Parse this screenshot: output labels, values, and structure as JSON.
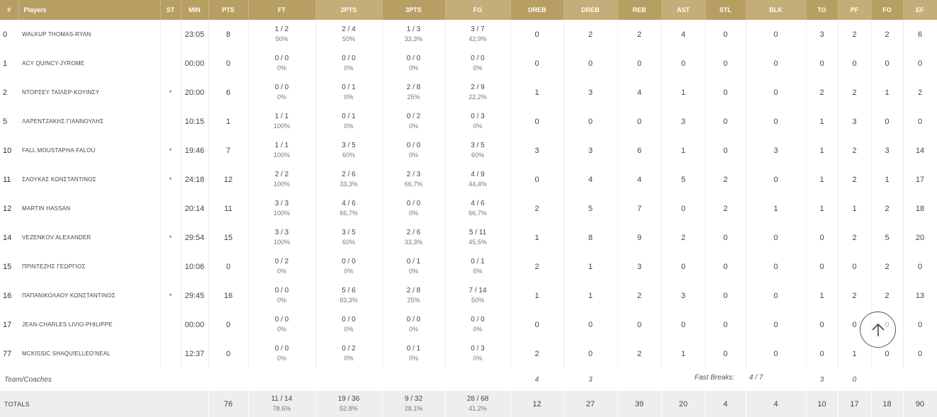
{
  "columns": {
    "num": "#",
    "players": "Players",
    "st": "ST",
    "min": "MIN",
    "pts": "PTS",
    "ft": "FT",
    "two_pts": "2PTS",
    "three_pts": "3PTS",
    "fg": "FG",
    "oreb": "OREB",
    "dreb": "DREB",
    "reb": "REB",
    "ast": "AST",
    "stl": "STL",
    "blk": "BLK",
    "to": "TO",
    "pf": "PF",
    "fo": "FO",
    "ef": "EF"
  },
  "players": [
    {
      "num": "0",
      "name": "WALKUP THOMAS-RYAN",
      "st": "",
      "min": "23:05",
      "pts": "8",
      "ft": "1 / 2",
      "ft_pct": "50%",
      "p2": "2 / 4",
      "p2_pct": "50%",
      "p3": "1 / 3",
      "p3_pct": "33,3%",
      "fg": "3 / 7",
      "fg_pct": "42,9%",
      "oreb": "0",
      "dreb": "2",
      "reb": "2",
      "ast": "4",
      "stl": "0",
      "blk": "0",
      "to": "3",
      "pf": "2",
      "fo": "2",
      "ef": "6"
    },
    {
      "num": "1",
      "name": "ACY QUINCY-JYROME",
      "st": "",
      "min": "00:00",
      "pts": "0",
      "ft": "0 / 0",
      "ft_pct": "0%",
      "p2": "0 / 0",
      "p2_pct": "0%",
      "p3": "0 / 0",
      "p3_pct": "0%",
      "fg": "0 / 0",
      "fg_pct": "0%",
      "oreb": "0",
      "dreb": "0",
      "reb": "0",
      "ast": "0",
      "stl": "0",
      "blk": "0",
      "to": "0",
      "pf": "0",
      "fo": "0",
      "ef": "0"
    },
    {
      "num": "2",
      "name": "ΝΤΟΡΣΕΥ ΤΑΪΛΕΡ-ΚΟΥΙΝΣΥ",
      "st": "*",
      "min": "20:00",
      "pts": "6",
      "ft": "0 / 0",
      "ft_pct": "0%",
      "p2": "0 / 1",
      "p2_pct": "0%",
      "p3": "2 / 8",
      "p3_pct": "25%",
      "fg": "2 / 9",
      "fg_pct": "22,2%",
      "oreb": "1",
      "dreb": "3",
      "reb": "4",
      "ast": "1",
      "stl": "0",
      "blk": "0",
      "to": "2",
      "pf": "2",
      "fo": "1",
      "ef": "2"
    },
    {
      "num": "5",
      "name": "ΛΑΡΕΝΤΖΑΚΗΣ ΓΙΑΝΝΟΥΛΗΣ",
      "st": "",
      "min": "10:15",
      "pts": "1",
      "ft": "1 / 1",
      "ft_pct": "100%",
      "p2": "0 / 1",
      "p2_pct": "0%",
      "p3": "0 / 2",
      "p3_pct": "0%",
      "fg": "0 / 3",
      "fg_pct": "0%",
      "oreb": "0",
      "dreb": "0",
      "reb": "0",
      "ast": "3",
      "stl": "0",
      "blk": "0",
      "to": "1",
      "pf": "3",
      "fo": "0",
      "ef": "0"
    },
    {
      "num": "10",
      "name": "FALL MOUSTAPHA-FALOU",
      "st": "*",
      "min": "19:46",
      "pts": "7",
      "ft": "1 / 1",
      "ft_pct": "100%",
      "p2": "3 / 5",
      "p2_pct": "60%",
      "p3": "0 / 0",
      "p3_pct": "0%",
      "fg": "3 / 5",
      "fg_pct": "60%",
      "oreb": "3",
      "dreb": "3",
      "reb": "6",
      "ast": "1",
      "stl": "0",
      "blk": "3",
      "to": "1",
      "pf": "2",
      "fo": "3",
      "ef": "14"
    },
    {
      "num": "11",
      "name": "ΣΛΟΥΚΑΣ ΚΩΝΣΤΑΝΤΙΝΟΣ",
      "st": "*",
      "min": "24:18",
      "pts": "12",
      "ft": "2 / 2",
      "ft_pct": "100%",
      "p2": "2 / 6",
      "p2_pct": "33,3%",
      "p3": "2 / 3",
      "p3_pct": "66,7%",
      "fg": "4 / 9",
      "fg_pct": "44,4%",
      "oreb": "0",
      "dreb": "4",
      "reb": "4",
      "ast": "5",
      "stl": "2",
      "blk": "0",
      "to": "1",
      "pf": "2",
      "fo": "1",
      "ef": "17"
    },
    {
      "num": "12",
      "name": "MARTIN HASSAN",
      "st": "",
      "min": "20:14",
      "pts": "11",
      "ft": "3 / 3",
      "ft_pct": "100%",
      "p2": "4 / 6",
      "p2_pct": "66,7%",
      "p3": "0 / 0",
      "p3_pct": "0%",
      "fg": "4 / 6",
      "fg_pct": "66,7%",
      "oreb": "2",
      "dreb": "5",
      "reb": "7",
      "ast": "0",
      "stl": "2",
      "blk": "1",
      "to": "1",
      "pf": "1",
      "fo": "2",
      "ef": "18"
    },
    {
      "num": "14",
      "name": "VEZENKOV ALEXANDER",
      "st": "*",
      "min": "29:54",
      "pts": "15",
      "ft": "3 / 3",
      "ft_pct": "100%",
      "p2": "3 / 5",
      "p2_pct": "60%",
      "p3": "2 / 6",
      "p3_pct": "33,3%",
      "fg": "5 / 11",
      "fg_pct": "45,5%",
      "oreb": "1",
      "dreb": "8",
      "reb": "9",
      "ast": "2",
      "stl": "0",
      "blk": "0",
      "to": "0",
      "pf": "2",
      "fo": "5",
      "ef": "20"
    },
    {
      "num": "15",
      "name": "ΠΡΙΝΤΕΖΗΣ ΓΕΩΡΓΙΟΣ",
      "st": "",
      "min": "10:06",
      "pts": "0",
      "ft": "0 / 2",
      "ft_pct": "0%",
      "p2": "0 / 0",
      "p2_pct": "0%",
      "p3": "0 / 1",
      "p3_pct": "0%",
      "fg": "0 / 1",
      "fg_pct": "0%",
      "oreb": "2",
      "dreb": "1",
      "reb": "3",
      "ast": "0",
      "stl": "0",
      "blk": "0",
      "to": "0",
      "pf": "0",
      "fo": "2",
      "ef": "0"
    },
    {
      "num": "16",
      "name": "ΠΑΠΑΝΙΚΟΛΑΟΥ ΚΩΝΣΤΑΝΤΙΝΟΣ",
      "st": "*",
      "min": "29:45",
      "pts": "16",
      "ft": "0 / 0",
      "ft_pct": "0%",
      "p2": "5 / 6",
      "p2_pct": "83,3%",
      "p3": "2 / 8",
      "p3_pct": "25%",
      "fg": "7 / 14",
      "fg_pct": "50%",
      "oreb": "1",
      "dreb": "1",
      "reb": "2",
      "ast": "3",
      "stl": "0",
      "blk": "0",
      "to": "1",
      "pf": "2",
      "fo": "2",
      "ef": "13"
    },
    {
      "num": "17",
      "name": "JEAN-CHARLES LIVIO-PHILIPPE",
      "st": "",
      "min": "00:00",
      "pts": "0",
      "ft": "0 / 0",
      "ft_pct": "0%",
      "p2": "0 / 0",
      "p2_pct": "0%",
      "p3": "0 / 0",
      "p3_pct": "0%",
      "fg": "0 / 0",
      "fg_pct": "0%",
      "oreb": "0",
      "dreb": "0",
      "reb": "0",
      "ast": "0",
      "stl": "0",
      "blk": "0",
      "to": "0",
      "pf": "0",
      "fo": "0",
      "ef": "0"
    },
    {
      "num": "77",
      "name": "MCKISSIC SHAQUIELLEO'NEAL",
      "st": "",
      "min": "12:37",
      "pts": "0",
      "ft": "0 / 0",
      "ft_pct": "0%",
      "p2": "0 / 2",
      "p2_pct": "0%",
      "p3": "0 / 1",
      "p3_pct": "0%",
      "fg": "0 / 3",
      "fg_pct": "0%",
      "oreb": "2",
      "dreb": "0",
      "reb": "2",
      "ast": "1",
      "stl": "0",
      "blk": "0",
      "to": "0",
      "pf": "1",
      "fo": "0",
      "ef": "0"
    }
  ],
  "team": {
    "label": "Team/Coaches",
    "oreb": "4",
    "dreb": "3",
    "fast_breaks_label": "Fast Breaks:",
    "fast_breaks_value": "4 / 7",
    "to": "3",
    "pf": "0"
  },
  "totals": {
    "label": "TOTALS",
    "pts": "76",
    "ft": "11 / 14",
    "ft_pct": "78.6%",
    "p2": "19 / 36",
    "p2_pct": "52.8%",
    "p3": "9 / 32",
    "p3_pct": "28.1%",
    "fg": "28 / 68",
    "fg_pct": "41.2%",
    "oreb": "12",
    "dreb": "27",
    "reb": "39",
    "ast": "20",
    "stl": "4",
    "blk": "4",
    "to": "10",
    "pf": "17",
    "fo": "18",
    "ef": "90"
  },
  "scroll_top": {
    "icon": "arrow-up-icon"
  },
  "colors": {
    "header": "#b79f64",
    "header_alt": "#c3ad78",
    "totals_bg": "#eeeeee"
  }
}
